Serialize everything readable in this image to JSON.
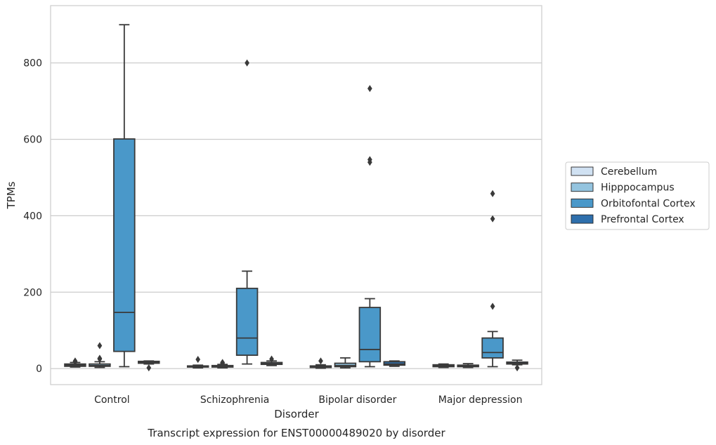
{
  "chart_data": {
    "type": "boxplot",
    "title": "Transcript expression for ENST00000489020 by disorder",
    "xlabel": "Disorder",
    "ylabel": "TPMs",
    "ylim": [
      -42,
      950
    ],
    "yticks": [
      0,
      200,
      400,
      600,
      800
    ],
    "grid": "horizontal",
    "legend_position": "right",
    "categories": [
      "Control",
      "Schizophrenia",
      "Bipolar disorder",
      "Major depression"
    ],
    "series": [
      {
        "name": "Cerebellum",
        "color": "#d0e1f2",
        "boxes": [
          {
            "whislo": 4,
            "q1": 6,
            "med": 9,
            "q3": 12,
            "whishi": 16,
            "fliers": [
              18,
              20
            ]
          },
          {
            "whislo": 2,
            "q1": 4,
            "med": 5,
            "q3": 7,
            "whishi": 9,
            "fliers": [
              24
            ]
          },
          {
            "whislo": 1,
            "q1": 3,
            "med": 5,
            "q3": 7,
            "whishi": 10,
            "fliers": [
              20
            ]
          },
          {
            "whislo": 3,
            "q1": 5,
            "med": 7,
            "q3": 10,
            "whishi": 12,
            "fliers": []
          }
        ]
      },
      {
        "name": "Hipppocampus",
        "color": "#94c4df",
        "boxes": [
          {
            "whislo": 3,
            "q1": 6,
            "med": 8,
            "q3": 12,
            "whishi": 18,
            "fliers": [
              25,
              27,
              60
            ]
          },
          {
            "whislo": 2,
            "q1": 4,
            "med": 6,
            "q3": 8,
            "whishi": 11,
            "fliers": [
              14,
              16
            ]
          },
          {
            "whislo": 2,
            "q1": 5,
            "med": 8,
            "q3": 14,
            "whishi": 28,
            "fliers": []
          },
          {
            "whislo": 3,
            "q1": 5,
            "med": 7,
            "q3": 9,
            "whishi": 13,
            "fliers": []
          }
        ]
      },
      {
        "name": "Orbitofontal Cortex",
        "color": "#4a98c9",
        "boxes": [
          {
            "whislo": 5,
            "q1": 45,
            "med": 147,
            "q3": 601,
            "whishi": 900,
            "fliers": []
          },
          {
            "whislo": 12,
            "q1": 35,
            "med": 80,
            "q3": 210,
            "whishi": 255,
            "fliers": [
              800
            ]
          },
          {
            "whislo": 5,
            "q1": 18,
            "med": 50,
            "q3": 160,
            "whishi": 183,
            "fliers": [
              540,
              547,
              733
            ]
          },
          {
            "whislo": 5,
            "q1": 28,
            "med": 42,
            "q3": 80,
            "whishi": 97,
            "fliers": [
              163,
              392,
              458
            ]
          }
        ]
      },
      {
        "name": "Prefrontal Cortex",
        "color": "#2e6fac",
        "boxes": [
          {
            "whislo": 12,
            "q1": 14,
            "med": 16,
            "q3": 19,
            "whishi": 20,
            "fliers": [
              2
            ]
          },
          {
            "whislo": 8,
            "q1": 11,
            "med": 13,
            "q3": 16,
            "whishi": 20,
            "fliers": [
              25
            ]
          },
          {
            "whislo": 6,
            "q1": 9,
            "med": 12,
            "q3": 18,
            "whishi": 20,
            "fliers": []
          },
          {
            "whislo": 10,
            "q1": 12,
            "med": 14,
            "q3": 17,
            "whishi": 22,
            "fliers": [
              2
            ]
          }
        ]
      }
    ]
  }
}
